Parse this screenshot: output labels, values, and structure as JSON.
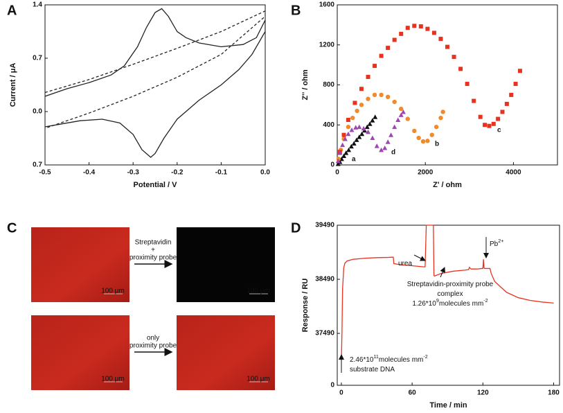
{
  "chart_data": [
    {
      "type": "line",
      "panel": "A",
      "xlabel": "Potential / V",
      "ylabel": "Current / μA",
      "xlim": [
        -0.5,
        0.0
      ],
      "ylim": [
        -0.7,
        1.4
      ],
      "xticks": [
        -0.5,
        -0.4,
        -0.3,
        -0.2,
        -0.1,
        {
          "value": 0,
          "label": "0.0"
        }
      ],
      "yticks": [
        1.4,
        0.7,
        {
          "value": 0,
          "label": "0.0"
        },
        {
          "value": -0.7,
          "label": "0.7"
        }
      ],
      "series": [
        {
          "color": "#222222",
          "dash": false,
          "x": [
            -0.5,
            -0.45,
            -0.4,
            -0.35,
            -0.32,
            -0.29,
            -0.27,
            -0.25,
            -0.235,
            -0.22,
            -0.2,
            -0.18,
            -0.15,
            -0.1,
            -0.05,
            -0.02,
            0,
            0,
            -0.03,
            -0.06,
            -0.1,
            -0.15,
            -0.2,
            -0.23,
            -0.25,
            -0.26,
            -0.28,
            -0.3,
            -0.33,
            -0.37,
            -0.42,
            -0.47,
            -0.5
          ],
          "values": [
            0.2,
            0.3,
            0.38,
            0.48,
            0.6,
            0.85,
            1.1,
            1.3,
            1.35,
            1.25,
            1.05,
            0.97,
            0.9,
            0.85,
            0.88,
            0.97,
            1.2,
            1.05,
            0.75,
            0.55,
            0.35,
            0.15,
            -0.1,
            -0.35,
            -0.55,
            -0.6,
            -0.5,
            -0.3,
            -0.15,
            -0.1,
            -0.12,
            -0.17,
            -0.2
          ]
        },
        {
          "color": "#222222",
          "dash": true,
          "x": [
            -0.5,
            -0.4,
            -0.3,
            -0.2,
            -0.1,
            0,
            0,
            -0.1,
            -0.2,
            -0.3,
            -0.4,
            -0.5
          ],
          "values": [
            0.25,
            0.42,
            0.62,
            0.83,
            1.05,
            1.32,
            1.25,
            0.75,
            0.45,
            0.2,
            -0.02,
            -0.22
          ]
        }
      ]
    },
    {
      "type": "scatter",
      "panel": "B",
      "xlabel": "Z' / ohm",
      "ylabel": "Z'' / ohm",
      "xlim": [
        0,
        5000
      ],
      "ylim": [
        0,
        1600
      ],
      "xticks": [
        0,
        2000,
        4000
      ],
      "yticks": [
        0,
        400,
        800,
        1200,
        1600
      ],
      "series": [
        {
          "name": "a",
          "color": "#111111",
          "marker": "triangle",
          "x": [
            20,
            60,
            100,
            150,
            200,
            260,
            320,
            380,
            440,
            500,
            560,
            620,
            680,
            740,
            800,
            860
          ],
          "values": [
            10,
            30,
            60,
            90,
            120,
            150,
            185,
            215,
            250,
            280,
            310,
            345,
            380,
            410,
            445,
            480
          ]
        },
        {
          "name": "b",
          "color": "#f08a2a",
          "marker": "circle",
          "x": [
            30,
            80,
            150,
            250,
            350,
            450,
            550,
            700,
            850,
            1000,
            1150,
            1300,
            1450,
            1600,
            1750,
            1850,
            1950,
            2050,
            2150,
            2250,
            2350,
            2400
          ],
          "values": [
            60,
            150,
            260,
            380,
            470,
            540,
            600,
            660,
            700,
            700,
            680,
            630,
            560,
            460,
            340,
            270,
            235,
            240,
            300,
            380,
            470,
            530
          ]
        },
        {
          "name": "c",
          "color": "#e8321f",
          "marker": "square",
          "x": [
            60,
            150,
            250,
            400,
            550,
            700,
            850,
            1000,
            1150,
            1300,
            1450,
            1600,
            1750,
            1900,
            2050,
            2200,
            2350,
            2500,
            2650,
            2800,
            2950,
            3100,
            3250,
            3350,
            3450,
            3550,
            3650,
            3750,
            3850,
            3950,
            4050,
            4150
          ],
          "values": [
            130,
            300,
            450,
            620,
            760,
            880,
            990,
            1090,
            1170,
            1250,
            1310,
            1370,
            1390,
            1385,
            1360,
            1320,
            1260,
            1180,
            1080,
            960,
            810,
            640,
            480,
            400,
            390,
            410,
            460,
            530,
            610,
            700,
            810,
            940
          ]
        },
        {
          "name": "d",
          "color": "#a046b0",
          "marker": "triangle",
          "x": [
            20,
            60,
            120,
            180,
            250,
            330,
            420,
            500,
            600,
            700,
            800,
            900,
            1000,
            1080,
            1150,
            1220,
            1300,
            1380,
            1450,
            1500
          ],
          "values": [
            40,
            120,
            200,
            260,
            310,
            350,
            375,
            380,
            365,
            330,
            270,
            190,
            150,
            170,
            230,
            300,
            380,
            450,
            500,
            530
          ]
        }
      ]
    },
    {
      "type": "image",
      "panel": "C",
      "arrow_labels": [
        [
          "Streptavidin",
          "+",
          "proximity probe"
        ],
        [
          "only",
          "proximity probe"
        ]
      ],
      "scale_bar": "100 μm"
    },
    {
      "type": "line",
      "panel": "D",
      "xlabel": "Time / min",
      "ylabel": "Response / RU",
      "xlim": [
        -3.5,
        185
      ],
      "ylim": [
        36530,
        39490
      ],
      "xticks": [
        0,
        60,
        120,
        180
      ],
      "yticks": [
        37490,
        38490,
        39490
      ],
      "y_break_label": "0",
      "series": [
        {
          "color": "#e8321f",
          "dash": false,
          "x": [
            0,
            0.5,
            1,
            2,
            3,
            5,
            10,
            20,
            30,
            40,
            44,
            44.5,
            50,
            60,
            70,
            71,
            72,
            72.5,
            78,
            78.5,
            79,
            85,
            95,
            105,
            108,
            108.5,
            110,
            115,
            119,
            120,
            120.5,
            121,
            121.5,
            122,
            125,
            126,
            127,
            130,
            135,
            140,
            150,
            160,
            170,
            180
          ],
          "values": [
            36990,
            37500,
            38300,
            38700,
            38790,
            38830,
            38860,
            38880,
            38890,
            38895,
            38900,
            38780,
            38760,
            38740,
            38720,
            38720,
            39490,
            39490,
            39490,
            38560,
            38550,
            38600,
            38640,
            38660,
            38670,
            38710,
            38680,
            38680,
            38690,
            38690,
            38860,
            38700,
            38690,
            38690,
            38690,
            38690,
            38600,
            38450,
            38350,
            38250,
            38150,
            38100,
            38070,
            38050
          ]
        }
      ],
      "annotations": [
        {
          "lines": [
            [
              "urea"
            ]
          ]
        },
        {
          "lines": [
            [
              "Pb",
              "2+"
            ]
          ]
        },
        {
          "lines": [
            [
              "Streptavidin-proximity probe"
            ],
            [
              "complex"
            ],
            [
              "1.26*10",
              "9",
              "molecules mm",
              "-2"
            ]
          ]
        },
        {
          "lines": [
            [
              "2.46*10",
              "11",
              "molecules mm",
              "-2"
            ],
            [
              "substrate DNA"
            ]
          ]
        }
      ]
    }
  ]
}
